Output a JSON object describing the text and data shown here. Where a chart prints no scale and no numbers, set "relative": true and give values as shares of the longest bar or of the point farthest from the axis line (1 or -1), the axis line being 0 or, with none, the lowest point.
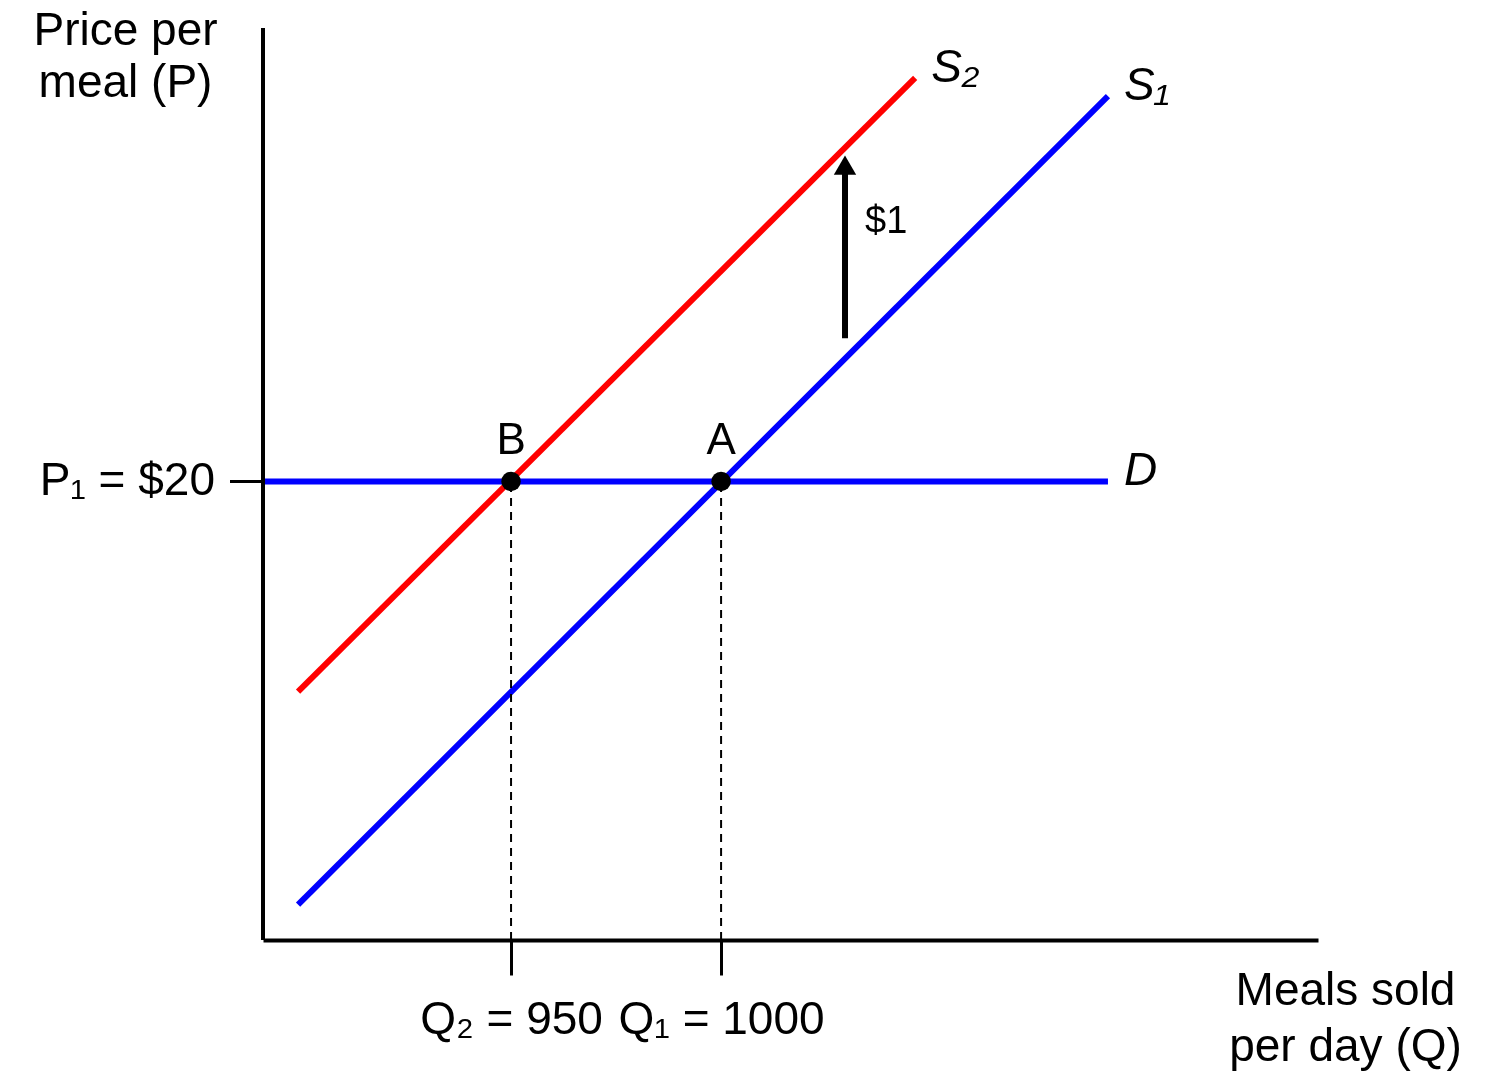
{
  "chart_data": {
    "type": "line",
    "xlabel": "Meals sold per day (Q)",
    "ylabel": "Price per meal (P)",
    "relative": true,
    "xlim": [
      890.95,
      1142.1
    ],
    "xticks": [
      {
        "value": 950,
        "label": "Q₂ = 950"
      },
      {
        "value": 1000,
        "label": "Q₁ = 1000"
      }
    ],
    "grid": false,
    "legend": false,
    "ref_lines": [
      {
        "axis": "x",
        "value": 890.95,
        "color": "#000000"
      }
    ],
    "series": [
      {
        "name": "S₂",
        "color": "#ff0000",
        "x": [
          899.3,
          1046.2
        ],
        "values": [
          0.288,
          1
        ]
      },
      {
        "name": "S₁",
        "color": "#0000ff",
        "x": [
          899.3,
          1092.1
        ],
        "values": [
          0.041,
          0.979
        ]
      },
      {
        "name": "D",
        "color": "#0000ff",
        "x": [
          890.95,
          1092.1
        ],
        "values": [
          0.532,
          0.532
        ]
      },
      {
        "color": "#000000",
        "line_style": "dashed",
        "x": [
          950,
          950
        ],
        "values": [
          0,
          0.532
        ]
      },
      {
        "color": "#000000",
        "line_style": "dashed",
        "x": [
          1000,
          1000
        ],
        "values": [
          0,
          0.532
        ]
      },
      {
        "type": "scatter",
        "color": "#000000",
        "marker": "circle",
        "x": [
          950,
          1000
        ],
        "values": [
          0.532,
          0.532
        ]
      },
      {
        "color": "#000000",
        "marker": "triangle",
        "x": [
          1029.5,
          1029.5
        ],
        "values": [
          0.698,
          0.899
        ]
      }
    ],
    "annotations": [
      {
        "text": "B",
        "x": 950,
        "y": 0.532
      },
      {
        "text": "A",
        "x": 1000,
        "y": 0.532
      },
      "P₁ = $20",
      "$1"
    ]
  }
}
